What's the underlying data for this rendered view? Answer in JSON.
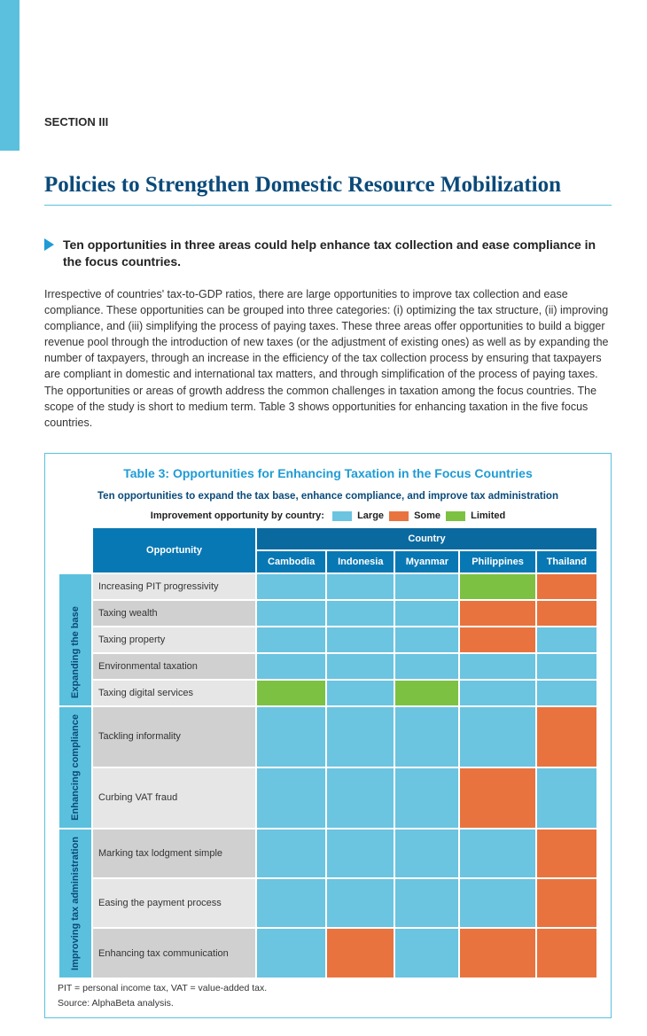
{
  "section_label": "SECTION III",
  "title": "Policies to Strengthen Domestic Resource Mobilization",
  "highlight": "Ten opportunities in three areas could help enhance tax collection and ease compliance in the focus countries.",
  "body": "Irrespective of countries' tax-to-GDP ratios, there are large opportunities to improve tax collection and ease compliance. These opportunities can be grouped into three categories: (i) optimizing the tax structure, (ii) improving compliance, and (iii) simplifying the process of paying taxes. These three areas offer opportunities to build a bigger revenue pool through the introduction of new taxes (or the adjustment of existing ones) as well as by expanding the number of taxpayers, through an increase in the efficiency of the tax collection process by ensuring that taxpayers are compliant in domestic and international tax matters, and through simplification of the process of paying taxes. The opportunities or areas of growth address the common challenges in taxation among the focus countries. The scope of the study is short to medium term. Table 3 shows opportunities for enhancing taxation in the five focus countries.",
  "table": {
    "title": "Table 3: Opportunities for Enhancing Taxation in the Focus Countries",
    "subtitle": "Ten opportunities to expand the tax base, enhance compliance, and improve tax administration",
    "legend_label": "Improvement opportunity by country:",
    "legend_items": [
      {
        "label": "Large",
        "color": "#6bc4e0"
      },
      {
        "label": "Some",
        "color": "#e8733f"
      },
      {
        "label": "Limited",
        "color": "#7cc142"
      }
    ],
    "colors": {
      "large": "#6bc4e0",
      "some": "#e8733f",
      "limited": "#7cc142"
    },
    "country_header": "Country",
    "opportunity_header": "Opportunity",
    "columns": [
      "Cambodia",
      "Indonesia",
      "Myanmar",
      "Philippines",
      "Thailand"
    ],
    "categories": [
      {
        "name": "Expanding the base",
        "rows": [
          {
            "label": "Increasing PIT progressivity",
            "vals": [
              "large",
              "large",
              "large",
              "limited",
              "some"
            ]
          },
          {
            "label": "Taxing wealth",
            "vals": [
              "large",
              "large",
              "large",
              "some",
              "some"
            ]
          },
          {
            "label": "Taxing property",
            "vals": [
              "large",
              "large",
              "large",
              "some",
              "large"
            ]
          },
          {
            "label": "Environmental taxation",
            "vals": [
              "large",
              "large",
              "large",
              "large",
              "large"
            ]
          },
          {
            "label": "Taxing digital services",
            "vals": [
              "limited",
              "large",
              "limited",
              "large",
              "large"
            ]
          }
        ]
      },
      {
        "name": "Enhancing compliance",
        "rows": [
          {
            "label": "Tackling informality",
            "vals": [
              "large",
              "large",
              "large",
              "large",
              "some"
            ]
          },
          {
            "label": "Curbing VAT fraud",
            "vals": [
              "large",
              "large",
              "large",
              "some",
              "large"
            ]
          }
        ]
      },
      {
        "name": "Improving tax administration",
        "rows": [
          {
            "label": "Marking tax lodgment simple",
            "vals": [
              "large",
              "large",
              "large",
              "large",
              "some"
            ]
          },
          {
            "label": "Easing the payment process",
            "vals": [
              "large",
              "large",
              "large",
              "large",
              "some"
            ]
          },
          {
            "label": "Enhancing tax communication",
            "vals": [
              "large",
              "some",
              "large",
              "some",
              "some"
            ]
          }
        ]
      }
    ],
    "footnote1": "PIT = personal income tax, VAT = value-added tax.",
    "footnote2": "Source: AlphaBeta analysis."
  }
}
